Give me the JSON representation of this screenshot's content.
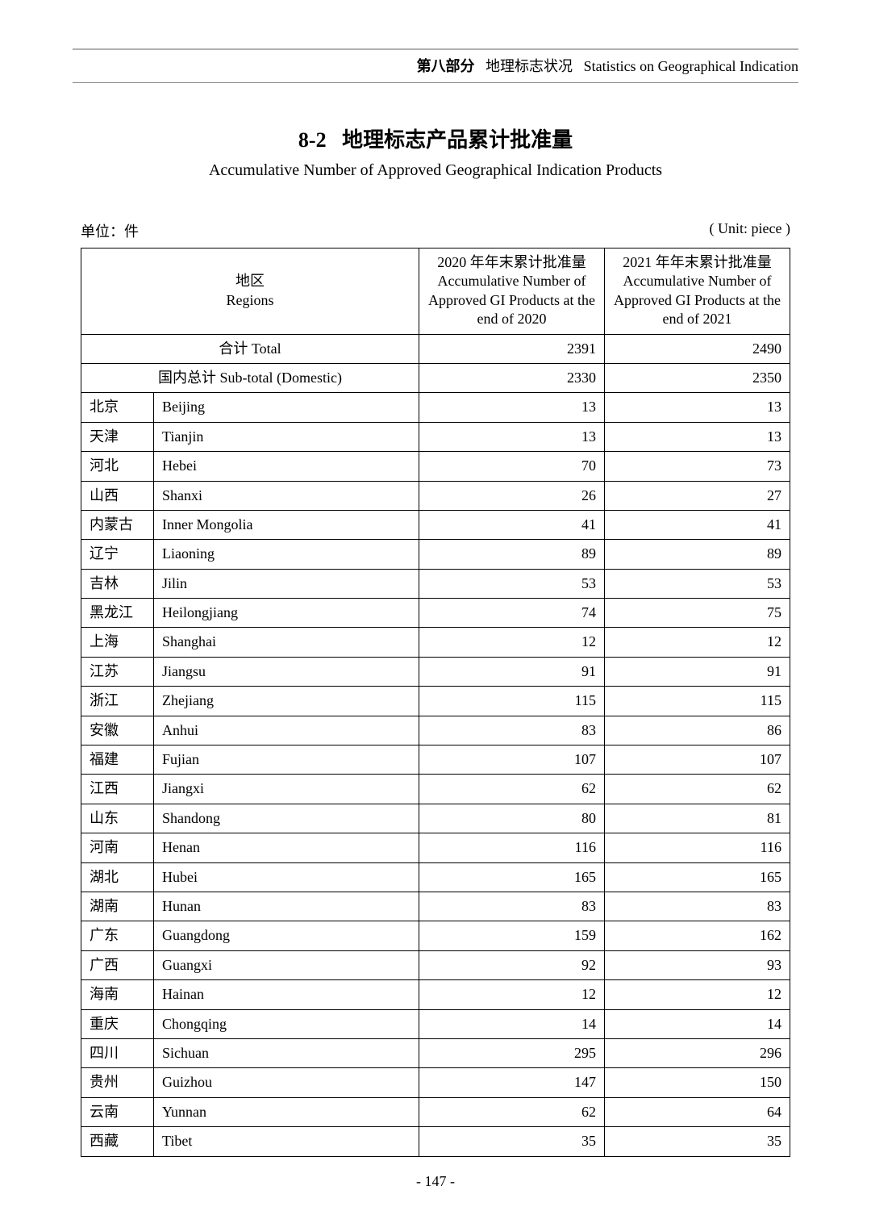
{
  "header": {
    "section_bold": "第八部分",
    "section_cn": "地理标志状况",
    "section_en": "Statistics on Geographical Indication"
  },
  "title": {
    "num": "8-2",
    "cn": "地理标志产品累计批准量",
    "en": "Accumulative Number of Approved Geographical Indication Products"
  },
  "unit": {
    "left": "单位：件",
    "right": "( Unit: piece )"
  },
  "table": {
    "type": "table",
    "columns": {
      "region_cn": "地区",
      "region_en": "Regions",
      "col2020_cn": "2020 年年末累计批准量",
      "col2020_en1": "Accumulative Number of",
      "col2020_en2": "Approved GI Products at the",
      "col2020_en3": "end of 2020",
      "col2021_cn": "2021 年年末累计批准量",
      "col2021_en1": "Accumulative Number of",
      "col2021_en2": "Approved GI Products at the",
      "col2021_en3": "end of 2021"
    },
    "totals": [
      {
        "label": "合计 Total",
        "v2020": "2391",
        "v2021": "2490"
      },
      {
        "label": "国内总计 Sub-total (Domestic)",
        "v2020": "2330",
        "v2021": "2350"
      }
    ],
    "rows": [
      {
        "cn": "北京",
        "en": "Beijing",
        "v2020": "13",
        "v2021": "13"
      },
      {
        "cn": "天津",
        "en": "Tianjin",
        "v2020": "13",
        "v2021": "13"
      },
      {
        "cn": "河北",
        "en": "Hebei",
        "v2020": "70",
        "v2021": "73"
      },
      {
        "cn": "山西",
        "en": "Shanxi",
        "v2020": "26",
        "v2021": "27"
      },
      {
        "cn": "内蒙古",
        "en": "Inner Mongolia",
        "v2020": "41",
        "v2021": "41"
      },
      {
        "cn": "辽宁",
        "en": "Liaoning",
        "v2020": "89",
        "v2021": "89"
      },
      {
        "cn": "吉林",
        "en": "Jilin",
        "v2020": "53",
        "v2021": "53"
      },
      {
        "cn": "黑龙江",
        "en": "Heilongjiang",
        "v2020": "74",
        "v2021": "75"
      },
      {
        "cn": "上海",
        "en": "Shanghai",
        "v2020": "12",
        "v2021": "12"
      },
      {
        "cn": "江苏",
        "en": "Jiangsu",
        "v2020": "91",
        "v2021": "91"
      },
      {
        "cn": "浙江",
        "en": "Zhejiang",
        "v2020": "115",
        "v2021": "115"
      },
      {
        "cn": "安徽",
        "en": "Anhui",
        "v2020": "83",
        "v2021": "86"
      },
      {
        "cn": "福建",
        "en": "Fujian",
        "v2020": "107",
        "v2021": "107"
      },
      {
        "cn": "江西",
        "en": "Jiangxi",
        "v2020": "62",
        "v2021": "62"
      },
      {
        "cn": "山东",
        "en": "Shandong",
        "v2020": "80",
        "v2021": "81"
      },
      {
        "cn": "河南",
        "en": "Henan",
        "v2020": "116",
        "v2021": "116"
      },
      {
        "cn": "湖北",
        "en": "Hubei",
        "v2020": "165",
        "v2021": "165"
      },
      {
        "cn": "湖南",
        "en": "Hunan",
        "v2020": "83",
        "v2021": "83"
      },
      {
        "cn": "广东",
        "en": "Guangdong",
        "v2020": "159",
        "v2021": "162"
      },
      {
        "cn": "广西",
        "en": "Guangxi",
        "v2020": "92",
        "v2021": "93"
      },
      {
        "cn": "海南",
        "en": "Hainan",
        "v2020": "12",
        "v2021": "12"
      },
      {
        "cn": "重庆",
        "en": "Chongqing",
        "v2020": "14",
        "v2021": "14"
      },
      {
        "cn": "四川",
        "en": "Sichuan",
        "v2020": "295",
        "v2021": "296"
      },
      {
        "cn": "贵州",
        "en": "Guizhou",
        "v2020": "147",
        "v2021": "150"
      },
      {
        "cn": "云南",
        "en": "Yunnan",
        "v2020": "62",
        "v2021": "64"
      },
      {
        "cn": "西藏",
        "en": "Tibet",
        "v2020": "35",
        "v2021": "35"
      }
    ],
    "border_color": "#000000",
    "background_color": "#ffffff",
    "header_fontsize": 18,
    "body_fontsize": 18
  },
  "page_number": "- 147 -"
}
